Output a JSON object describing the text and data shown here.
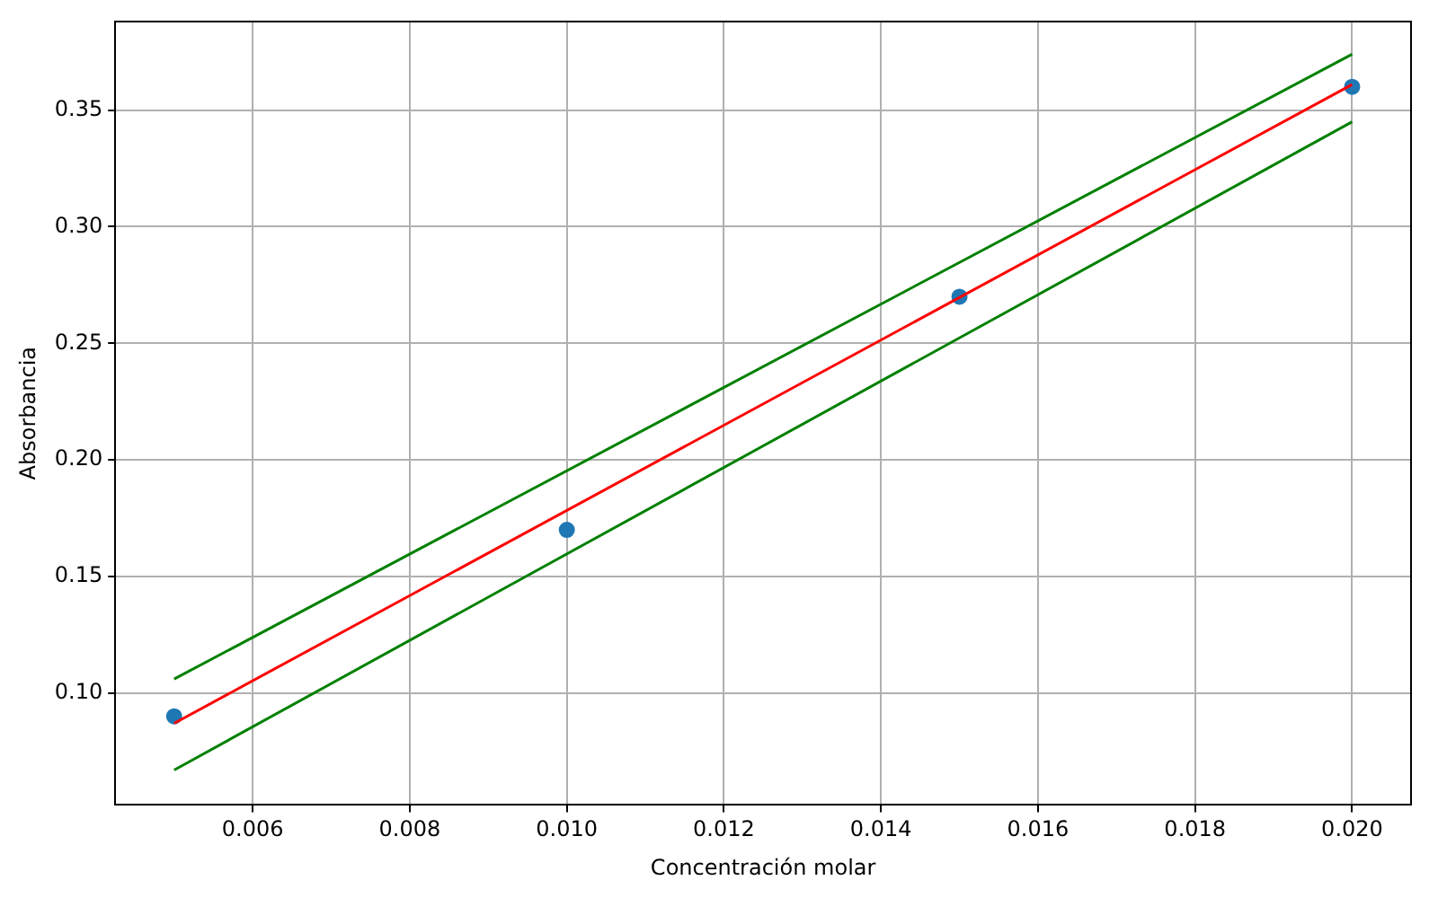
{
  "chart_data": {
    "type": "scatter",
    "xlabel": "Concentración molar",
    "ylabel": "Absorbancia",
    "xlim": [
      0.00425,
      0.02075
    ],
    "ylim": [
      0.052,
      0.388
    ],
    "xticks": [
      {
        "value": 0.006,
        "label": "0.006"
      },
      {
        "value": 0.008,
        "label": "0.008"
      },
      {
        "value": 0.01,
        "label": "0.010"
      },
      {
        "value": 0.012,
        "label": "0.012"
      },
      {
        "value": 0.014,
        "label": "0.014"
      },
      {
        "value": 0.016,
        "label": "0.016"
      },
      {
        "value": 0.018,
        "label": "0.018"
      },
      {
        "value": 0.02,
        "label": "0.020"
      }
    ],
    "yticks": [
      {
        "value": 0.1,
        "label": "0.10"
      },
      {
        "value": 0.15,
        "label": "0.15"
      },
      {
        "value": 0.2,
        "label": "0.20"
      },
      {
        "value": 0.25,
        "label": "0.25"
      },
      {
        "value": 0.3,
        "label": "0.30"
      },
      {
        "value": 0.35,
        "label": "0.35"
      }
    ],
    "grid": true,
    "legend": false,
    "series": [
      {
        "type": "scatter",
        "marker": "circle",
        "color": "#1f77b4",
        "x": [
          0.005,
          0.01,
          0.015,
          0.02
        ],
        "values": [
          0.09,
          0.17,
          0.27,
          0.36
        ]
      },
      {
        "type": "line",
        "marker": "none",
        "color": "#ff0000",
        "x": [
          0.005,
          0.02
        ],
        "values": [
          0.087,
          0.361
        ]
      },
      {
        "type": "line",
        "marker": "none",
        "color": "#008000",
        "x": [
          0.005,
          0.02
        ],
        "values": [
          0.106,
          0.374
        ]
      },
      {
        "type": "line",
        "marker": "none",
        "color": "#008000",
        "x": [
          0.005,
          0.02
        ],
        "values": [
          0.067,
          0.345
        ]
      }
    ]
  }
}
